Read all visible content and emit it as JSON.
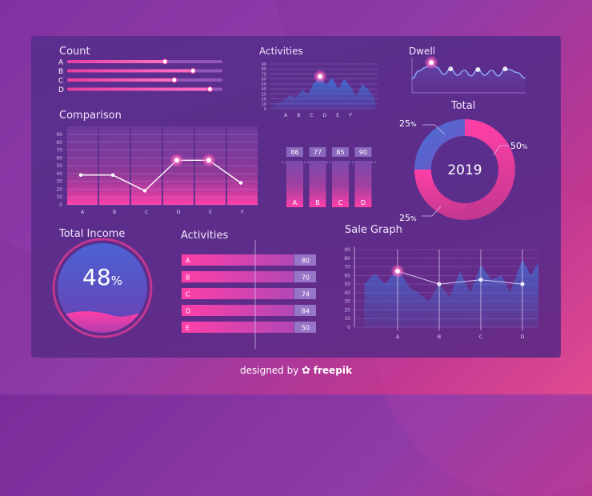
{
  "footer": {
    "text": "designed by",
    "brand": "freepik"
  },
  "colors": {
    "pink": "#ff3fa8",
    "magenta": "#e23c9f",
    "blue": "#3b6fd6",
    "panel": "#5c2d8c"
  },
  "chart_data": [
    {
      "id": "count",
      "type": "bar",
      "title": "Count",
      "categories": [
        "A",
        "B",
        "C",
        "D"
      ],
      "values": [
        0.63,
        0.81,
        0.69,
        0.92
      ],
      "xlim": [
        0,
        1
      ]
    },
    {
      "id": "activities_top",
      "type": "area",
      "title": "Activities",
      "categories": [
        "A",
        "B",
        "C",
        "D",
        "E",
        "F"
      ],
      "y_ticks": [
        "90",
        "80",
        "70",
        "60",
        "50",
        "40",
        "30",
        "20",
        "10",
        "0"
      ],
      "ylim": [
        0,
        90
      ],
      "x": [
        0,
        0.35,
        0.7,
        1.05,
        1.4,
        1.75,
        2.1,
        2.45,
        2.8,
        3.15,
        3.5,
        3.85,
        4.2,
        4.55,
        4.9,
        5.25,
        5.6,
        6.0
      ],
      "values": [
        5,
        12,
        18,
        28,
        22,
        38,
        30,
        52,
        65,
        48,
        62,
        40,
        60,
        45,
        25,
        50,
        38,
        20
      ],
      "marker_index": 8
    },
    {
      "id": "dwell",
      "type": "line",
      "title": "Dwell",
      "x": [
        0,
        0.6,
        1.2,
        1.7,
        2.2,
        2.8,
        3.4,
        4.0,
        4.6,
        5.2,
        5.8,
        6.4,
        7.0,
        7.6,
        8.2,
        8.6,
        9.2,
        10
      ],
      "values": [
        40,
        62,
        72,
        86,
        72,
        52,
        68,
        50,
        64,
        48,
        66,
        50,
        64,
        48,
        68,
        66,
        58,
        42
      ],
      "markers": [
        3,
        6,
        10,
        14
      ],
      "ylim": [
        0,
        100
      ]
    },
    {
      "id": "total",
      "type": "pie",
      "title": "Total",
      "center_label": "2019",
      "slices": [
        {
          "label": "50",
          "value": 50
        },
        {
          "label": "25",
          "value": 25
        },
        {
          "label": "25",
          "value": 25
        }
      ],
      "unit": "%"
    },
    {
      "id": "comparison",
      "type": "line",
      "title": "Comparison",
      "categories": [
        "A",
        "B",
        "C",
        "D",
        "E",
        "F"
      ],
      "values": [
        38,
        38,
        18,
        57,
        57,
        28
      ],
      "markers": [
        3,
        4
      ],
      "y_ticks": [
        "90",
        "80",
        "70",
        "60",
        "50",
        "40",
        "30",
        "20",
        "10",
        "0"
      ],
      "ylim": [
        0,
        90
      ]
    },
    {
      "id": "vbars",
      "type": "bar",
      "categories": [
        "A",
        "B",
        "C",
        "D"
      ],
      "values": [
        86,
        77,
        85,
        90
      ],
      "labels": [
        "86",
        "77",
        "85",
        "90"
      ]
    },
    {
      "id": "total_income",
      "type": "gauge",
      "title": "Total Income",
      "value_text": "48",
      "unit": "%",
      "fraction": 0.48
    },
    {
      "id": "activities_bottom",
      "type": "bar",
      "title": "Activities",
      "categories": [
        "A",
        "B",
        "C",
        "D",
        "E"
      ],
      "values": [
        80,
        70,
        74,
        84,
        50
      ],
      "labels": [
        "80",
        "70",
        "74",
        "84",
        "50"
      ]
    },
    {
      "id": "sale_graph",
      "type": "area",
      "title": "Sale Graph",
      "categories": [
        "A",
        "B",
        "C",
        "D"
      ],
      "y_ticks": [
        "90",
        "80",
        "70",
        "60",
        "50",
        "40",
        "30",
        "20",
        "10",
        "0"
      ],
      "ylim": [
        0,
        90
      ],
      "points": [
        65,
        50,
        55,
        50
      ],
      "area_x": [
        -0.8,
        -0.55,
        -0.3,
        0,
        0.3,
        0.5,
        0.75,
        1.0,
        1.25,
        1.5,
        1.75,
        2.0,
        2.25,
        2.5,
        2.7,
        3.0,
        3.2,
        3.4
      ],
      "area_values": [
        50,
        62,
        50,
        68,
        45,
        40,
        30,
        50,
        35,
        65,
        40,
        72,
        55,
        60,
        40,
        78,
        60,
        75
      ]
    }
  ]
}
